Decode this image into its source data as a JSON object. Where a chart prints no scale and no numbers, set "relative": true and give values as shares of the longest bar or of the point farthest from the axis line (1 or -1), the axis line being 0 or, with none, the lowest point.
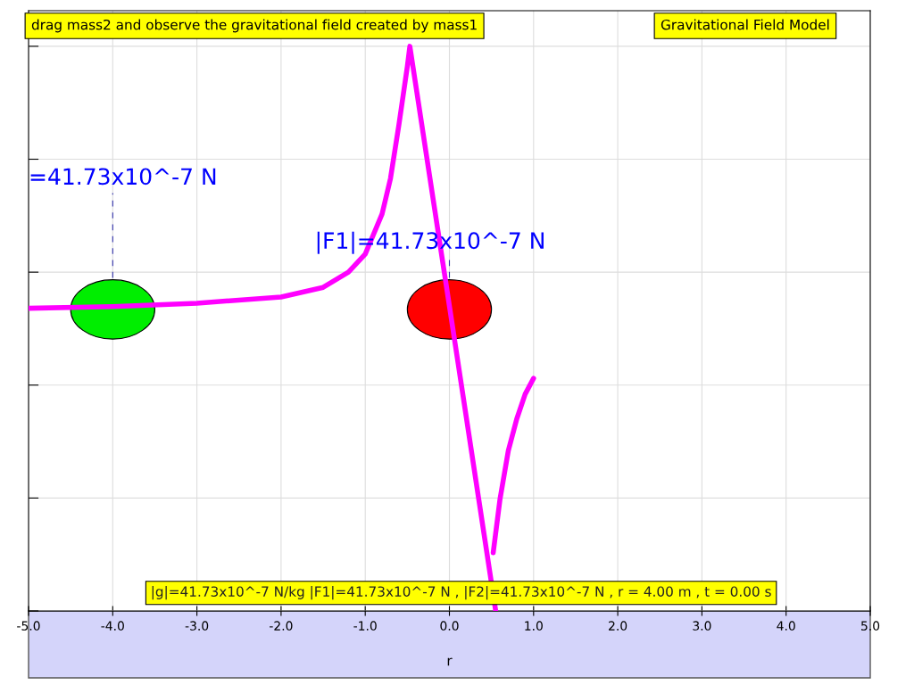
{
  "chart_data": {
    "type": "line",
    "title": "drag mass2 and observe the gravitational field created by mass1",
    "subtitle": "Gravitational Field Model",
    "xlabel": "r",
    "relative": true,
    "grid": true,
    "legend": false,
    "marker": "none",
    "line_style": "solid",
    "tick_labels": "x",
    "xlim": [
      -5.0,
      5.0
    ],
    "xticks": [
      {
        "value": -5,
        "label": "-5.0"
      },
      {
        "value": -4,
        "label": "-4.0"
      },
      {
        "value": -3,
        "label": "-3.0"
      },
      {
        "value": -2,
        "label": "-2.0"
      },
      {
        "value": -1,
        "label": "-1.0"
      },
      {
        "value": 0,
        "label": "0.0"
      },
      {
        "value": 1,
        "label": "1.0"
      },
      {
        "value": 2,
        "label": "2.0"
      },
      {
        "value": 3,
        "label": "3.0"
      },
      {
        "value": 4,
        "label": "4.0"
      },
      {
        "value": 5,
        "label": "5.0"
      }
    ],
    "series": [
      {
        "color": "#ff00ff",
        "x": [
          -5.0,
          -4.0,
          -3.0,
          -2.0,
          -1.5,
          -1.2,
          -1.0,
          -0.8,
          -0.7,
          -0.6,
          -0.5,
          -0.47,
          0.0,
          0.55
        ],
        "values": [
          0.536,
          0.539,
          0.545,
          0.556,
          0.573,
          0.6,
          0.632,
          0.703,
          0.766,
          0.861,
          0.964,
          1.0,
          0.54,
          0.0
        ]
      },
      {
        "color": "#ff00ff",
        "x": [
          0.52,
          0.6,
          0.7,
          0.8,
          0.9,
          1.0
        ],
        "values": [
          0.103,
          0.197,
          0.284,
          0.34,
          0.384,
          0.412
        ]
      }
    ],
    "annotations": [
      "=41.73x10^-7 N",
      "|F1|=41.73x10^-7 N",
      "|g|=41.73x10^-7 N/kg |F1|=41.73x10^-7 N , |F2|=41.73x10^-7 N , r = 4.00 m , t = 0.00 s"
    ]
  }
}
